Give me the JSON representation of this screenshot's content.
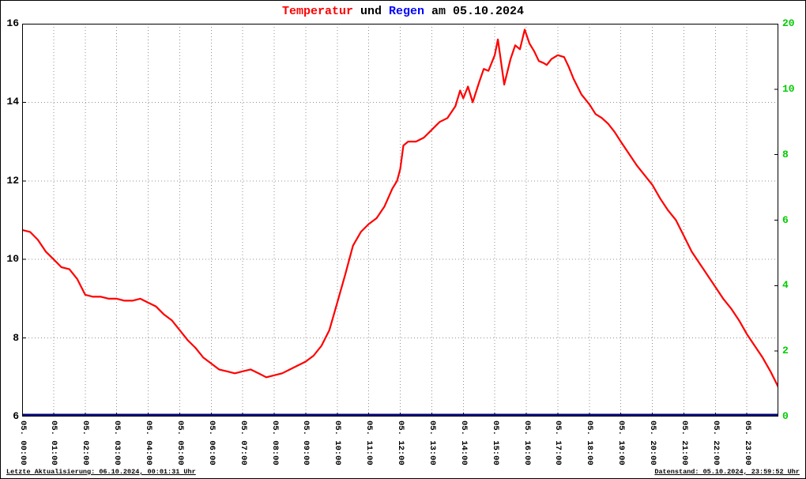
{
  "title": {
    "temperatur": "Temperatur",
    "und": " und ",
    "regen": "Regen",
    "date_suffix": " am 05.10.2024"
  },
  "footer": {
    "last_update": "Letzte Aktualisierung: 06.10.2024, 00:01:31 Uhr",
    "data_stand": "Datenstand: 05.10.2024, 23:59:52 Uhr"
  },
  "colors": {
    "temperature_line": "#ff0000",
    "rain_line": "#000080",
    "right_axis_text": "#00cc00",
    "grid": "#909090",
    "title_regen": "#0000ff",
    "title_temperatur": "#ff0000"
  },
  "chart_data": {
    "type": "line",
    "title": "Temperatur und Regen am 05.10.2024",
    "grid": true,
    "x_axis": {
      "unit": "hour",
      "range": [
        0,
        24
      ],
      "tick_labels": [
        "05. 00:00",
        "05. 01:00",
        "05. 02:00",
        "05. 03:00",
        "05. 04:00",
        "05. 05:00",
        "05. 06:00",
        "05. 07:00",
        "05. 08:00",
        "05. 09:00",
        "05. 10:00",
        "05. 11:00",
        "05. 12:00",
        "05. 13:00",
        "05. 14:00",
        "05. 15:00",
        "05. 16:00",
        "05. 17:00",
        "05. 18:00",
        "05. 19:00",
        "05. 20:00",
        "05. 21:00",
        "05. 22:00",
        "05. 23:00"
      ]
    },
    "left_axis": {
      "name": "Temperatur",
      "range": [
        6,
        16
      ],
      "ticks": [
        16,
        14,
        12,
        10,
        8,
        6
      ],
      "grid_lines": [
        14,
        12,
        10,
        8
      ]
    },
    "right_axis": {
      "name": "Regen",
      "tick_labels": [
        "20",
        "10",
        "8",
        "6",
        "4",
        "2",
        "0"
      ]
    },
    "series": [
      {
        "name": "Temperatur",
        "color": "#ff0000",
        "axis": "left",
        "points": [
          [
            0,
            10.75
          ],
          [
            0.25,
            10.7
          ],
          [
            0.5,
            10.5
          ],
          [
            0.75,
            10.2
          ],
          [
            1,
            10.0
          ],
          [
            1.25,
            9.8
          ],
          [
            1.5,
            9.75
          ],
          [
            1.75,
            9.5
          ],
          [
            2,
            9.1
          ],
          [
            2.25,
            9.05
          ],
          [
            2.5,
            9.05
          ],
          [
            2.75,
            9.0
          ],
          [
            3,
            9.0
          ],
          [
            3.25,
            8.95
          ],
          [
            3.5,
            8.95
          ],
          [
            3.75,
            9.0
          ],
          [
            4,
            8.9
          ],
          [
            4.25,
            8.8
          ],
          [
            4.5,
            8.6
          ],
          [
            4.75,
            8.45
          ],
          [
            5,
            8.2
          ],
          [
            5.25,
            7.95
          ],
          [
            5.5,
            7.75
          ],
          [
            5.75,
            7.5
          ],
          [
            6,
            7.35
          ],
          [
            6.25,
            7.2
          ],
          [
            6.5,
            7.15
          ],
          [
            6.75,
            7.1
          ],
          [
            7,
            7.15
          ],
          [
            7.25,
            7.2
          ],
          [
            7.5,
            7.1
          ],
          [
            7.75,
            7.0
          ],
          [
            8,
            7.05
          ],
          [
            8.25,
            7.1
          ],
          [
            8.5,
            7.2
          ],
          [
            8.75,
            7.3
          ],
          [
            9,
            7.4
          ],
          [
            9.25,
            7.55
          ],
          [
            9.5,
            7.8
          ],
          [
            9.75,
            8.2
          ],
          [
            10,
            8.9
          ],
          [
            10.25,
            9.6
          ],
          [
            10.5,
            10.35
          ],
          [
            10.75,
            10.7
          ],
          [
            11,
            10.9
          ],
          [
            11.25,
            11.05
          ],
          [
            11.5,
            11.35
          ],
          [
            11.75,
            11.8
          ],
          [
            11.9,
            12.0
          ],
          [
            12,
            12.3
          ],
          [
            12.1,
            12.9
          ],
          [
            12.25,
            13.0
          ],
          [
            12.5,
            13.0
          ],
          [
            12.75,
            13.1
          ],
          [
            13,
            13.3
          ],
          [
            13.25,
            13.5
          ],
          [
            13.5,
            13.6
          ],
          [
            13.75,
            13.9
          ],
          [
            13.9,
            14.3
          ],
          [
            14,
            14.1
          ],
          [
            14.15,
            14.4
          ],
          [
            14.3,
            14.0
          ],
          [
            14.5,
            14.5
          ],
          [
            14.65,
            14.85
          ],
          [
            14.8,
            14.8
          ],
          [
            15,
            15.2
          ],
          [
            15.1,
            15.6
          ],
          [
            15.3,
            14.45
          ],
          [
            15.5,
            15.1
          ],
          [
            15.65,
            15.45
          ],
          [
            15.8,
            15.35
          ],
          [
            15.95,
            15.85
          ],
          [
            16.1,
            15.5
          ],
          [
            16.25,
            15.3
          ],
          [
            16.4,
            15.05
          ],
          [
            16.55,
            15.0
          ],
          [
            16.65,
            14.95
          ],
          [
            16.8,
            15.1
          ],
          [
            17,
            15.2
          ],
          [
            17.2,
            15.15
          ],
          [
            17.35,
            14.9
          ],
          [
            17.5,
            14.6
          ],
          [
            17.75,
            14.2
          ],
          [
            18,
            13.95
          ],
          [
            18.2,
            13.7
          ],
          [
            18.4,
            13.6
          ],
          [
            18.6,
            13.45
          ],
          [
            18.8,
            13.25
          ],
          [
            19,
            13.0
          ],
          [
            19.25,
            12.7
          ],
          [
            19.5,
            12.4
          ],
          [
            19.75,
            12.15
          ],
          [
            20,
            11.9
          ],
          [
            20.25,
            11.55
          ],
          [
            20.5,
            11.25
          ],
          [
            20.75,
            11.0
          ],
          [
            21,
            10.6
          ],
          [
            21.25,
            10.2
          ],
          [
            21.5,
            9.9
          ],
          [
            21.75,
            9.6
          ],
          [
            22,
            9.3
          ],
          [
            22.25,
            9.0
          ],
          [
            22.5,
            8.75
          ],
          [
            22.75,
            8.45
          ],
          [
            23,
            8.1
          ],
          [
            23.25,
            7.8
          ],
          [
            23.5,
            7.5
          ],
          [
            23.75,
            7.15
          ],
          [
            24,
            6.75
          ]
        ]
      },
      {
        "name": "Regen",
        "color": "#000080",
        "axis": "right",
        "points": [
          [
            0,
            0
          ],
          [
            24,
            0
          ]
        ]
      }
    ]
  }
}
